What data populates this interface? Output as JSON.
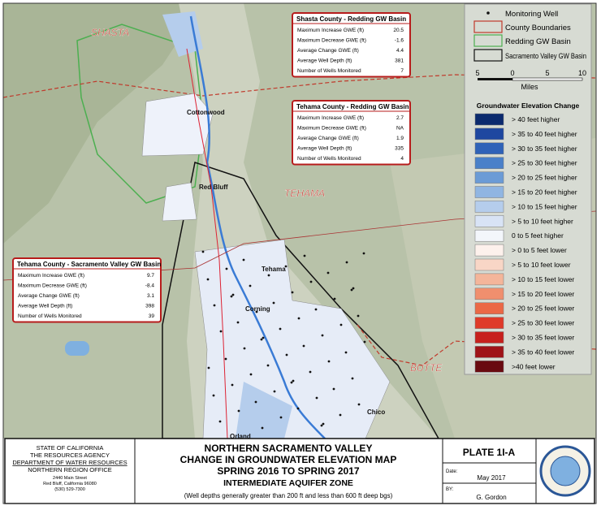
{
  "map_labels": {
    "counties": [
      "SHASTA",
      "TEHAMA",
      "BUTTE"
    ],
    "cities": [
      "Cottonwood",
      "Red Bluff",
      "Tehama",
      "Corning",
      "Orland",
      "Chico"
    ]
  },
  "info_boxes": [
    {
      "title": "Shasta County - Redding GW Basin",
      "rows": [
        [
          "Maximum Increase GWE (ft)",
          "20.5"
        ],
        [
          "Maximum Decrease GWE (ft)",
          "-1.6"
        ],
        [
          "Average Change GWE (ft)",
          "4.4"
        ],
        [
          "Average Well Depth (ft)",
          "381"
        ],
        [
          "Number of Wells Monitored",
          "7"
        ]
      ]
    },
    {
      "title": "Tehama County - Redding GW Basin",
      "rows": [
        [
          "Maximum Increase GWE (ft)",
          "2.7"
        ],
        [
          "Maximum Decrease GWE (ft)",
          "NA"
        ],
        [
          "Average Change GWE (ft)",
          "1.9"
        ],
        [
          "Average Well Depth (ft)",
          "335"
        ],
        [
          "Number of Wells Monitored",
          "4"
        ]
      ]
    },
    {
      "title": "Tehama County - Sacramento Valley GW Basin",
      "rows": [
        [
          "Maximum Increase GWE (ft)",
          "9.7"
        ],
        [
          "Maximum Decrease GWE (ft)",
          "-8.4"
        ],
        [
          "Average Change GWE (ft)",
          "3.1"
        ],
        [
          "Average Well Depth (ft)",
          "398"
        ],
        [
          "Number of Wells Monitored",
          "39"
        ]
      ]
    }
  ],
  "legend": {
    "features": [
      "Monitoring Well",
      "County Boundaries",
      "Redding GW Basin",
      "Sacramento Valley GW Basin"
    ],
    "scale": {
      "ticks": [
        "5",
        "0",
        "5",
        "10"
      ],
      "unit": "Miles"
    },
    "change_title": "Groundwater Elevation Change",
    "classes": [
      {
        "label": "> 40 feet higher",
        "color": "#0b2a6e"
      },
      {
        "label": "> 35 to 40 feet higher",
        "color": "#1e47a0"
      },
      {
        "label": "> 30 to 35 feet higher",
        "color": "#2f62b8"
      },
      {
        "label": "> 25 to 30 feet higher",
        "color": "#4a80c9"
      },
      {
        "label": "> 20 to 25 feet higher",
        "color": "#6b9bd6"
      },
      {
        "label": "> 15 to 20 feet higher",
        "color": "#90b5e2"
      },
      {
        "label": "> 10 to 15 feet higher",
        "color": "#b5cdec"
      },
      {
        "label": "> 5 to 10 feet higher",
        "color": "#d8e3f5"
      },
      {
        "label": "0 to 5 feet higher",
        "color": "#f3f6fb"
      },
      {
        "label": "> 0 to 5 feet lower",
        "color": "#fdf1ec"
      },
      {
        "label": "> 5 to 10 feet lower",
        "color": "#f8d6c6"
      },
      {
        "label": "> 10 to 15 feet lower",
        "color": "#f4b59a"
      },
      {
        "label": "> 15 to 20 feet lower",
        "color": "#f08f6e"
      },
      {
        "label": "> 20 to 25 feet lower",
        "color": "#eb6846"
      },
      {
        "label": "> 25 to 30 feet lower",
        "color": "#df3a29"
      },
      {
        "label": "> 30 to 35 feet lower",
        "color": "#c7201d"
      },
      {
        "label": "> 35 to 40 feet lower",
        "color": "#9f1318"
      },
      {
        "label": ">40 feet lower",
        "color": "#690a10"
      }
    ]
  },
  "title_block": {
    "agency": [
      "STATE OF CALIFORNIA",
      "THE RESOURCES AGENCY",
      "DEPARTMENT OF WATER RESOURCES",
      "NORTHERN REGION OFFICE",
      "2440 Main Street",
      "Red Bluff, California 96080",
      "(530) 529-7300"
    ],
    "title": [
      "NORTHERN SACRAMENTO VALLEY",
      "CHANGE IN GROUNDWATER ELEVATION MAP",
      "SPRING 2016 TO SPRING 2017",
      "INTERMEDIATE AQUIFER ZONE"
    ],
    "note": "(Well depths generally greater than 200 ft and less than 600 ft deep bgs)",
    "plate": "PLATE 1I-A",
    "date_label": "Date:",
    "date": "May 2017",
    "by_label": "BY:",
    "by": "G. Gordon"
  }
}
